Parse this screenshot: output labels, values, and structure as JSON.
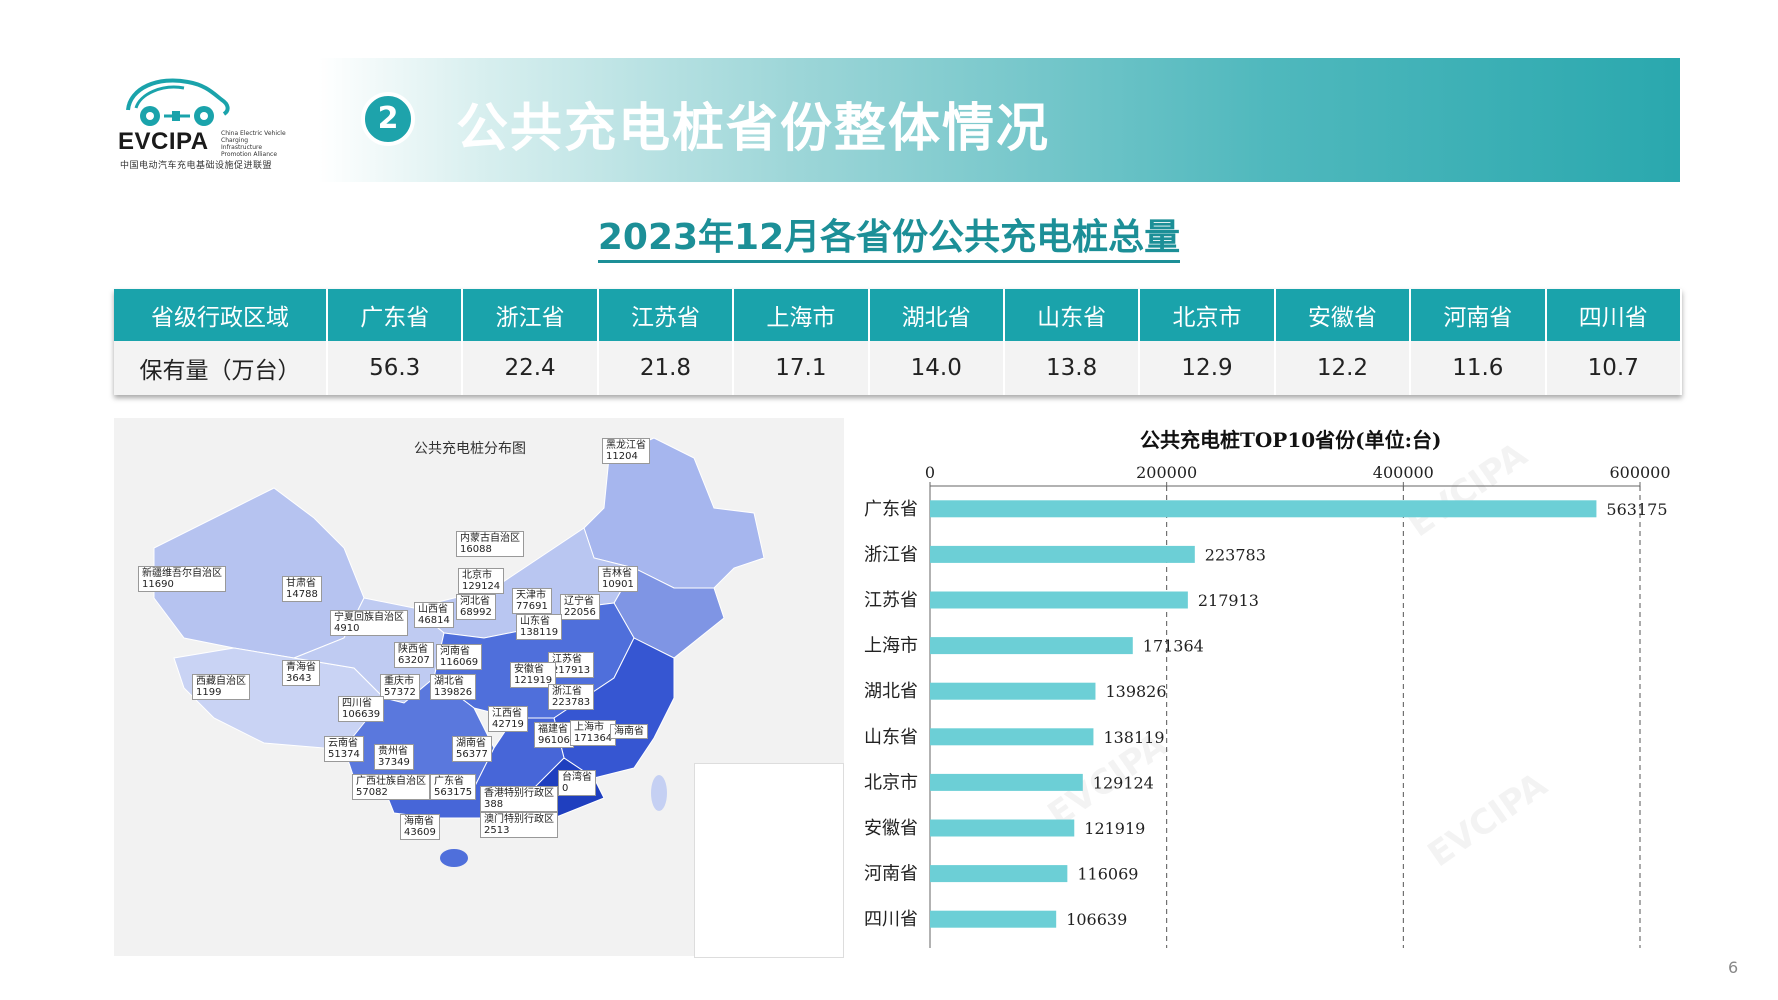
{
  "logo": {
    "name": "EVCIPA",
    "en_line": "China Electric Vehicle Charging Infrastructure Promotion Alliance",
    "cn_line": "中国电动汽车充电基础设施促进联盟"
  },
  "banner": {
    "number": "2",
    "title": "公共充电桩省份整体情况"
  },
  "subtitle": "2023年12月各省份公共充电桩总量",
  "summary_table": {
    "header_label": "省级行政区域",
    "row_label": "保有量（万台）",
    "columns": [
      "广东省",
      "浙江省",
      "江苏省",
      "上海市",
      "湖北省",
      "山东省",
      "北京市",
      "安徽省",
      "河南省",
      "四川省"
    ],
    "values": [
      "56.3",
      "22.4",
      "21.8",
      "17.1",
      "14.0",
      "13.8",
      "12.9",
      "12.2",
      "11.6",
      "10.7"
    ]
  },
  "map": {
    "title": "公共充电桩分布图",
    "labels": [
      {
        "name": "黑龙江省",
        "value": "11204"
      },
      {
        "name": "内蒙古自治区",
        "value": "16088"
      },
      {
        "name": "吉林省",
        "value": "10901"
      },
      {
        "name": "新疆维吾尔自治区",
        "value": "11690"
      },
      {
        "name": "甘肃省",
        "value": "14788"
      },
      {
        "name": "北京市",
        "value": "129124"
      },
      {
        "name": "天津市",
        "value": "77691"
      },
      {
        "name": "辽宁省",
        "value": "22056"
      },
      {
        "name": "河北省",
        "value": "68992"
      },
      {
        "name": "宁夏回族自治区",
        "value": "4910"
      },
      {
        "name": "山西省",
        "value": "46814"
      },
      {
        "name": "山东省",
        "value": "138119"
      },
      {
        "name": "陕西省",
        "value": "63207"
      },
      {
        "name": "河南省",
        "value": "116069"
      },
      {
        "name": "青海省",
        "value": "3643"
      },
      {
        "name": "江苏省",
        "value": "217913"
      },
      {
        "name": "安徽省",
        "value": "121919"
      },
      {
        "name": "西藏自治区",
        "value": "1199"
      },
      {
        "name": "重庆市",
        "value": "57372"
      },
      {
        "name": "湖北省",
        "value": "139826"
      },
      {
        "name": "浙江省",
        "value": "223783"
      },
      {
        "name": "四川省",
        "value": "106639"
      },
      {
        "name": "江西省",
        "value": "42719"
      },
      {
        "name": "福建省",
        "value": "96106"
      },
      {
        "name": "上海市",
        "value": "171364"
      },
      {
        "name": "海南省",
        "value": ""
      },
      {
        "name": "云南省",
        "value": "51374"
      },
      {
        "name": "贵州省",
        "value": "37349"
      },
      {
        "name": "湖南省",
        "value": "56377"
      },
      {
        "name": "台湾省",
        "value": "0"
      },
      {
        "name": "广西壮族自治区",
        "value": "57082"
      },
      {
        "name": "广东省",
        "value": "563175"
      },
      {
        "name": "香港特别行政区",
        "value": "388"
      },
      {
        "name": "海南省",
        "value": "43609"
      },
      {
        "name": "澳门特别行政区",
        "value": "2513"
      }
    ]
  },
  "chart_data": {
    "type": "bar",
    "orientation": "horizontal",
    "title": "公共充电桩TOP10省份(单位:台)",
    "categories": [
      "广东省",
      "浙江省",
      "江苏省",
      "上海市",
      "湖北省",
      "山东省",
      "北京市",
      "安徽省",
      "河南省",
      "四川省"
    ],
    "values": [
      563175,
      223783,
      217913,
      171364,
      139826,
      138119,
      129124,
      121919,
      116069,
      106639
    ],
    "xlim": [
      0,
      600000
    ],
    "xticks": [
      0,
      200000,
      400000,
      600000
    ],
    "grid": "vertical dashed",
    "bar_color": "#6ccfd6"
  },
  "page_number": "6",
  "colors": {
    "accent": "#1aa3ab",
    "bar": "#6ccfd6",
    "map_dark": "#1f3fbf",
    "map_light": "#c5d0f3"
  }
}
